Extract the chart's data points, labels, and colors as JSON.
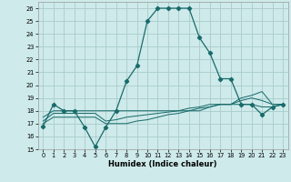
{
  "xlabel": "Humidex (Indice chaleur)",
  "bg_color": "#ceeaea",
  "grid_color": "#aacccc",
  "line_color": "#1a6b6b",
  "xlim": [
    -0.5,
    23.5
  ],
  "ylim": [
    15,
    26.5
  ],
  "xticks": [
    0,
    1,
    2,
    3,
    4,
    5,
    6,
    7,
    8,
    9,
    10,
    11,
    12,
    13,
    14,
    15,
    16,
    17,
    18,
    19,
    20,
    21,
    22,
    23
  ],
  "yticks": [
    15,
    16,
    17,
    18,
    19,
    20,
    21,
    22,
    23,
    24,
    25,
    26
  ],
  "line1_x": [
    0,
    1,
    2,
    3,
    4,
    5,
    6,
    7,
    8,
    9,
    10,
    11,
    12,
    13,
    14,
    15,
    16,
    17,
    18,
    19,
    20,
    21,
    22,
    23
  ],
  "line1_y": [
    16.8,
    18.5,
    18.0,
    18.0,
    16.7,
    15.2,
    16.7,
    18.0,
    20.3,
    21.5,
    25.0,
    26.0,
    26.0,
    26.0,
    26.0,
    23.7,
    22.5,
    20.5,
    20.5,
    18.5,
    18.5,
    17.7,
    18.3,
    18.5
  ],
  "line2_x": [
    0,
    1,
    2,
    3,
    4,
    5,
    6,
    7,
    8,
    9,
    10,
    11,
    12,
    13,
    14,
    15,
    16,
    17,
    18,
    19,
    20,
    21,
    22,
    23
  ],
  "line2_y": [
    17.5,
    18.0,
    18.0,
    18.0,
    18.0,
    18.0,
    18.0,
    18.0,
    18.0,
    18.0,
    18.0,
    18.0,
    18.0,
    18.0,
    18.0,
    18.0,
    18.3,
    18.5,
    18.5,
    18.5,
    18.5,
    18.3,
    18.3,
    18.5
  ],
  "line3_x": [
    0,
    1,
    2,
    3,
    4,
    5,
    6,
    7,
    8,
    9,
    10,
    11,
    12,
    13,
    14,
    15,
    16,
    17,
    18,
    19,
    20,
    21,
    22,
    23
  ],
  "line3_y": [
    17.2,
    17.8,
    17.8,
    17.8,
    17.8,
    17.8,
    17.2,
    17.3,
    17.5,
    17.6,
    17.7,
    17.8,
    17.9,
    18.0,
    18.2,
    18.3,
    18.5,
    18.5,
    18.5,
    18.8,
    19.0,
    18.8,
    18.5,
    18.5
  ],
  "line4_x": [
    0,
    1,
    2,
    3,
    4,
    5,
    6,
    7,
    8,
    9,
    10,
    11,
    12,
    13,
    14,
    15,
    16,
    17,
    18,
    19,
    20,
    21,
    22,
    23
  ],
  "line4_y": [
    17.0,
    17.5,
    17.5,
    17.5,
    17.5,
    17.5,
    17.0,
    17.0,
    17.0,
    17.2,
    17.3,
    17.5,
    17.7,
    17.8,
    18.0,
    18.2,
    18.3,
    18.5,
    18.5,
    19.0,
    19.2,
    19.5,
    18.5,
    18.5
  ],
  "marker": "D",
  "markersize": 2.2,
  "linewidth": 0.9
}
